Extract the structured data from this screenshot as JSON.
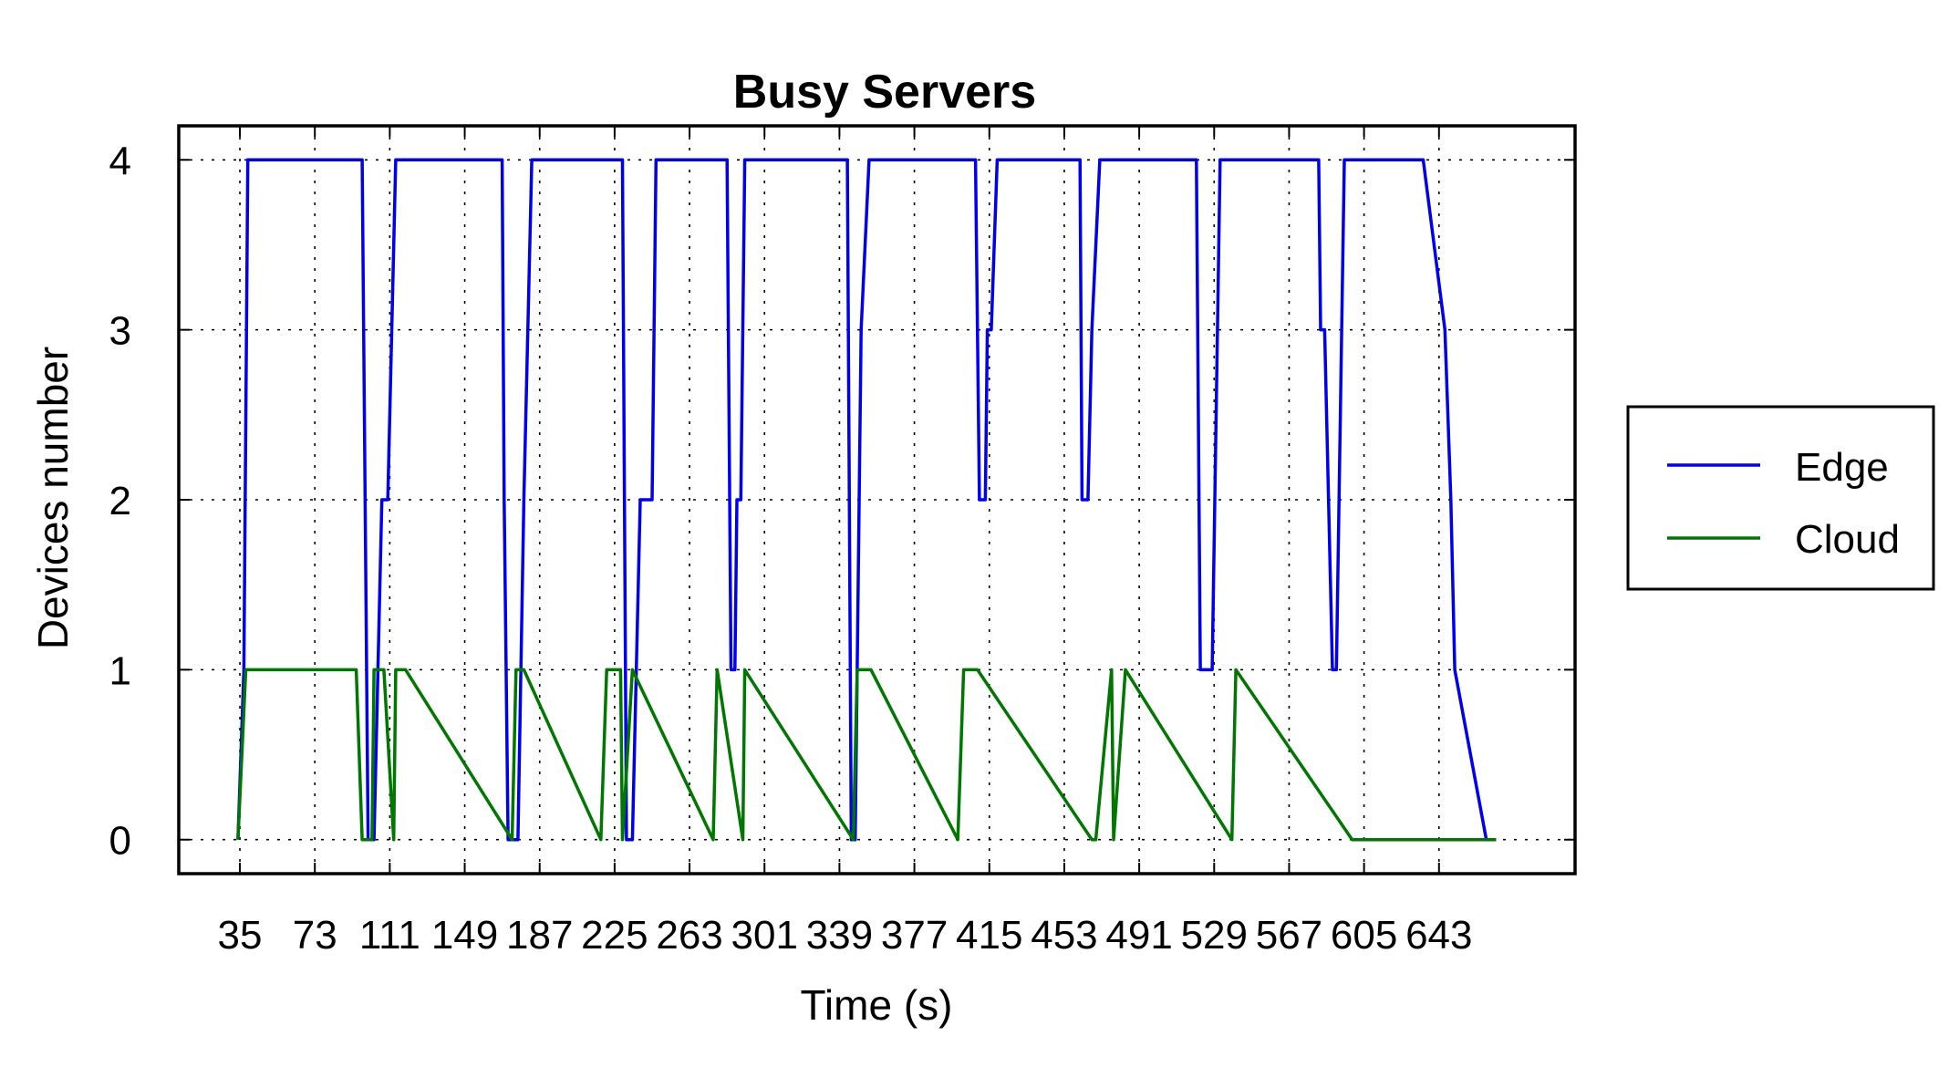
{
  "chart_data": {
    "type": "line",
    "title": "Busy Servers",
    "xlabel": "Time (s)",
    "ylabel": "Devices number",
    "xlim": [
      4,
      712
    ],
    "ylim": [
      -0.2,
      4.2
    ],
    "x_ticks": [
      35,
      73,
      111,
      149,
      187,
      225,
      263,
      301,
      339,
      377,
      415,
      453,
      491,
      529,
      567,
      605,
      643
    ],
    "x_tick_labels": [
      "35",
      "73",
      "111",
      "149",
      "187",
      "225",
      "263",
      "301",
      "339",
      "377",
      "415",
      "453",
      "491",
      "529",
      "567",
      "605",
      "643"
    ],
    "y_ticks": [
      0,
      1,
      2,
      3,
      4
    ],
    "y_tick_labels": [
      "0",
      "1",
      "2",
      "3",
      "4"
    ],
    "grid": true,
    "legend_position": "right",
    "series": [
      {
        "name": "Edge",
        "color": "#0000ee",
        "x": [
          34,
          37,
          39,
          43,
          97,
          100,
          103,
          107,
          110,
          114,
          168,
          169,
          171,
          176,
          179,
          183,
          229,
          231,
          234,
          238,
          244,
          246,
          282,
          284,
          286,
          287,
          289,
          291,
          343,
          345,
          347,
          350,
          354,
          408,
          410,
          413,
          414,
          416,
          419,
          461,
          462,
          465,
          467,
          471,
          520,
          522,
          528,
          532,
          582,
          583,
          585,
          589,
          591,
          595,
          635,
          646,
          649,
          651,
          667
        ],
        "y": [
          0,
          1,
          4,
          4,
          4,
          0,
          0,
          2,
          2,
          4,
          4,
          2,
          0,
          0,
          2,
          4,
          4,
          0,
          0,
          2,
          2,
          4,
          4,
          1,
          1,
          2,
          2,
          4,
          4,
          0,
          0,
          3,
          4,
          4,
          2,
          2,
          3,
          3,
          4,
          4,
          2,
          2,
          3,
          4,
          4,
          1,
          1,
          4,
          4,
          3,
          3,
          1,
          1,
          4,
          4,
          3,
          2,
          1,
          0
        ]
      },
      {
        "name": "Cloud",
        "color": "#007700",
        "x": [
          34,
          38,
          94,
          97,
          102,
          103,
          108,
          113,
          114,
          119,
          173,
          175,
          179,
          218,
          221,
          228,
          229,
          234,
          275,
          277,
          290,
          291,
          346,
          348,
          355,
          399,
          402,
          409,
          467,
          469,
          477,
          478,
          484,
          538,
          540,
          599,
          601,
          672
        ],
        "y": [
          0,
          1,
          1,
          0,
          0,
          1,
          1,
          0,
          1,
          1,
          0,
          1,
          1,
          0,
          1,
          1,
          0,
          1,
          0,
          1,
          0,
          1,
          0,
          1,
          1,
          0,
          1,
          1,
          0,
          0,
          1,
          0,
          1,
          0,
          1,
          0,
          0,
          0
        ]
      }
    ]
  }
}
